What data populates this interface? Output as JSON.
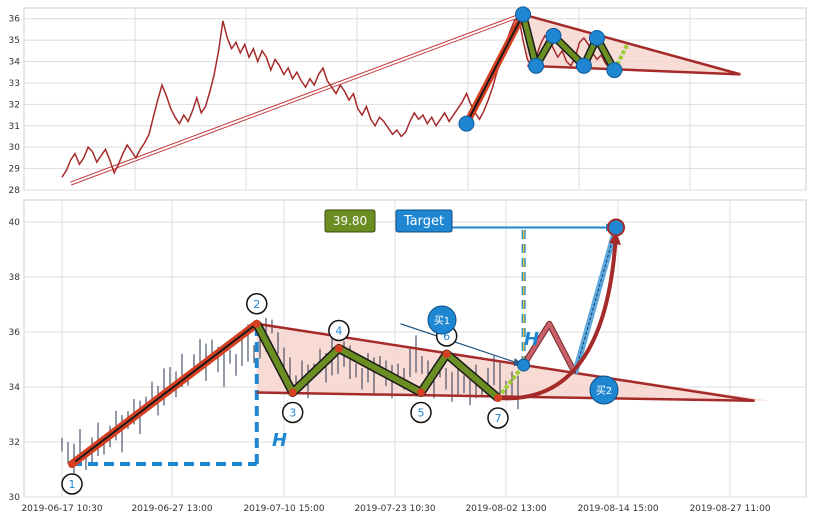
{
  "chart_data": [
    {
      "type": "line",
      "panel": "overview",
      "title": "",
      "xlabel": "",
      "ylabel": "",
      "ylim": [
        28,
        36.5
      ],
      "yticks": [
        28,
        29,
        30,
        31,
        32,
        33,
        34,
        35,
        36
      ],
      "grid": true,
      "price_color": "#a52a2a",
      "price_series": [
        28.6,
        28.9,
        29.4,
        29.7,
        29.2,
        29.5,
        30.0,
        29.8,
        29.3,
        29.6,
        29.9,
        29.4,
        28.8,
        29.2,
        29.7,
        30.1,
        29.8,
        29.5,
        29.9,
        30.2,
        30.6,
        31.4,
        32.2,
        32.9,
        32.4,
        31.8,
        31.4,
        31.1,
        31.5,
        31.2,
        31.7,
        32.3,
        31.6,
        31.9,
        32.6,
        33.4,
        34.5,
        35.9,
        35.1,
        34.6,
        34.9,
        34.4,
        34.8,
        34.2,
        34.6,
        34.0,
        34.5,
        34.2,
        33.6,
        34.1,
        33.8,
        33.4,
        33.7,
        33.2,
        33.5,
        33.1,
        32.8,
        33.2,
        32.9,
        33.4,
        33.7,
        33.1,
        32.8,
        32.5,
        32.9,
        32.6,
        32.2,
        32.5,
        31.8,
        31.5,
        31.9,
        31.3,
        31.0,
        31.4,
        31.2,
        30.9,
        30.6,
        30.8,
        30.5,
        30.7,
        31.2,
        31.6,
        31.3,
        31.5,
        31.1,
        31.4,
        31.0,
        31.3,
        31.6,
        31.2,
        31.5,
        31.8,
        32.1,
        32.5,
        32.0,
        31.6,
        31.3,
        31.7,
        32.2,
        32.8,
        33.5,
        34.2,
        34.8,
        35.4,
        35.9,
        36.1,
        35.0,
        34.1,
        33.8,
        34.2,
        34.8,
        35.2,
        35.0,
        34.6,
        34.2,
        34.5,
        34.0,
        33.8,
        34.2,
        34.9,
        35.1,
        34.8,
        34.4,
        34.1,
        34.3,
        33.9,
        33.7
      ],
      "patterns": [
        {
          "name": "trend-line-long",
          "style": "double-thin",
          "x": [
            2,
            106
          ],
          "y": [
            28.3,
            36.2
          ]
        },
        {
          "name": "upswing",
          "style": "thick-red",
          "x": [
            93,
            106
          ],
          "y": [
            31.1,
            36.2
          ]
        },
        {
          "name": "triangle-top-line",
          "style": "brown",
          "x": [
            106,
            156
          ],
          "y": [
            36.2,
            33.4
          ]
        },
        {
          "name": "triangle-bottom-line",
          "style": "brown",
          "x": [
            107,
            156
          ],
          "y": [
            33.8,
            33.4
          ]
        },
        {
          "name": "zigzag-green",
          "style": "green",
          "x": [
            106,
            109,
            113,
            120,
            123,
            127
          ],
          "y": [
            36.2,
            33.8,
            35.2,
            33.8,
            35.1,
            33.6
          ]
        },
        {
          "name": "zigzag-tail",
          "style": "light-green",
          "x": [
            127,
            130
          ],
          "y": [
            33.6,
            34.8
          ]
        }
      ],
      "points": [
        {
          "x": 93,
          "y": 31.1
        },
        {
          "x": 106,
          "y": 36.2
        },
        {
          "x": 109,
          "y": 33.8
        },
        {
          "x": 113,
          "y": 35.2
        },
        {
          "x": 120,
          "y": 33.8
        },
        {
          "x": 123,
          "y": 35.1
        },
        {
          "x": 127,
          "y": 33.6
        }
      ]
    },
    {
      "type": "line",
      "panel": "detail",
      "title": "",
      "xlabel": "",
      "ylabel": "",
      "ylim": [
        30,
        40.8
      ],
      "yticks": [
        30,
        32,
        34,
        36,
        38,
        40
      ],
      "grid": true,
      "x_tick_labels": [
        "2019-06-17 10:30",
        "2019-06-27 13:00",
        "2019-07-10 15:00",
        "2019-07-23 10:30",
        "2019-08-02 13:00",
        "2019-08-14 15:00",
        "2019-08-27 11:00"
      ],
      "price_color": "#2b3450",
      "price_series": [
        31.9,
        31.6,
        31.4,
        31.8,
        31.3,
        31.7,
        32.1,
        31.8,
        32.2,
        32.6,
        32.3,
        32.8,
        33.1,
        32.9,
        33.4,
        33.8,
        33.5,
        34.0,
        34.4,
        34.1,
        34.6,
        34.3,
        34.8,
        35.2,
        34.9,
        35.4,
        35.0,
        34.6,
        35.1,
        34.8,
        35.3,
        35.6,
        35.2,
        35.5,
        35.9,
        36.2,
        35.6,
        34.9,
        34.4,
        34.1,
        34.5,
        34.2,
        34.6,
        35.0,
        34.7,
        35.1,
        34.8,
        35.2,
        34.9,
        34.6,
        34.3,
        34.7,
        34.4,
        34.8,
        34.5,
        34.2,
        34.6,
        34.3,
        34.9,
        35.2,
        34.8,
        34.5,
        34.2,
        34.6,
        34.3,
        34.0,
        34.4,
        34.1,
        33.8,
        34.2,
        33.9,
        34.3,
        34.6,
        34.2,
        33.9,
        34.1,
        33.8
      ],
      "patterns": [
        {
          "name": "height-bracket-base",
          "style": "dashed-blue",
          "x": [
            0,
            36
          ],
          "y": [
            31.2,
            31.2
          ]
        },
        {
          "name": "height-bracket-vertical",
          "style": "dashed-blue",
          "x": [
            36,
            36
          ],
          "y": [
            31.2,
            36.3
          ]
        },
        {
          "name": "upswing",
          "style": "thick-red",
          "x": [
            0,
            36
          ],
          "y": [
            31.2,
            36.3
          ]
        },
        {
          "name": "triangle-top-line",
          "style": "brown",
          "x": [
            36,
            133
          ],
          "y": [
            36.3,
            33.5
          ]
        },
        {
          "name": "triangle-bottom-line",
          "style": "brown",
          "x": [
            36,
            133
          ],
          "y": [
            33.8,
            33.5
          ]
        },
        {
          "name": "zigzag-green",
          "style": "green",
          "x": [
            36,
            43,
            52,
            68,
            73,
            83
          ],
          "y": [
            36.3,
            33.8,
            35.4,
            33.8,
            35.2,
            33.6
          ]
        },
        {
          "name": "zigzag-tail",
          "style": "light-green",
          "x": [
            83,
            88
          ],
          "y": [
            33.6,
            34.8
          ]
        },
        {
          "name": "breakout-dashed-vertical",
          "style": "dashed-blue-yellow",
          "x": [
            88,
            88
          ],
          "y": [
            34.8,
            39.8
          ]
        },
        {
          "name": "target-arrow-line",
          "style": "blue",
          "x": [
            67,
            106
          ],
          "y": [
            39.8,
            39.8
          ]
        },
        {
          "name": "projected-move-pink",
          "style": "pink",
          "x": [
            88,
            93,
            98
          ],
          "y": [
            34.8,
            36.3,
            34.5
          ]
        },
        {
          "name": "projected-move-blue",
          "style": "blue-thick",
          "x": [
            98,
            106
          ],
          "y": [
            34.5,
            39.8
          ]
        },
        {
          "name": "buy1-pointer",
          "style": "blue-thin",
          "x": [
            64,
            88
          ],
          "y": [
            36.3,
            34.8
          ]
        }
      ],
      "points": [
        {
          "label": "1",
          "x": 0,
          "y": 31.2
        },
        {
          "label": "2",
          "x": 36,
          "y": 36.3
        },
        {
          "label": "3",
          "x": 43,
          "y": 33.8
        },
        {
          "label": "4",
          "x": 52,
          "y": 35.4
        },
        {
          "label": "5",
          "x": 68,
          "y": 33.8
        },
        {
          "label": "6",
          "x": 73,
          "y": 35.2
        },
        {
          "label": "7",
          "x": 83,
          "y": 33.6
        }
      ],
      "annotations": {
        "price_box": "39.80",
        "target_box": "Target",
        "height_label_1": "H",
        "height_label_2": "H",
        "buy1": "买1",
        "buy2": "买2"
      },
      "colors": {
        "triangle_fill": "#f6d5cc",
        "upswing": "#d64022",
        "green": "#6b8e23",
        "brown": "#a52a2a",
        "blue": "#1f86d1",
        "pink": "#c9606a"
      }
    }
  ]
}
